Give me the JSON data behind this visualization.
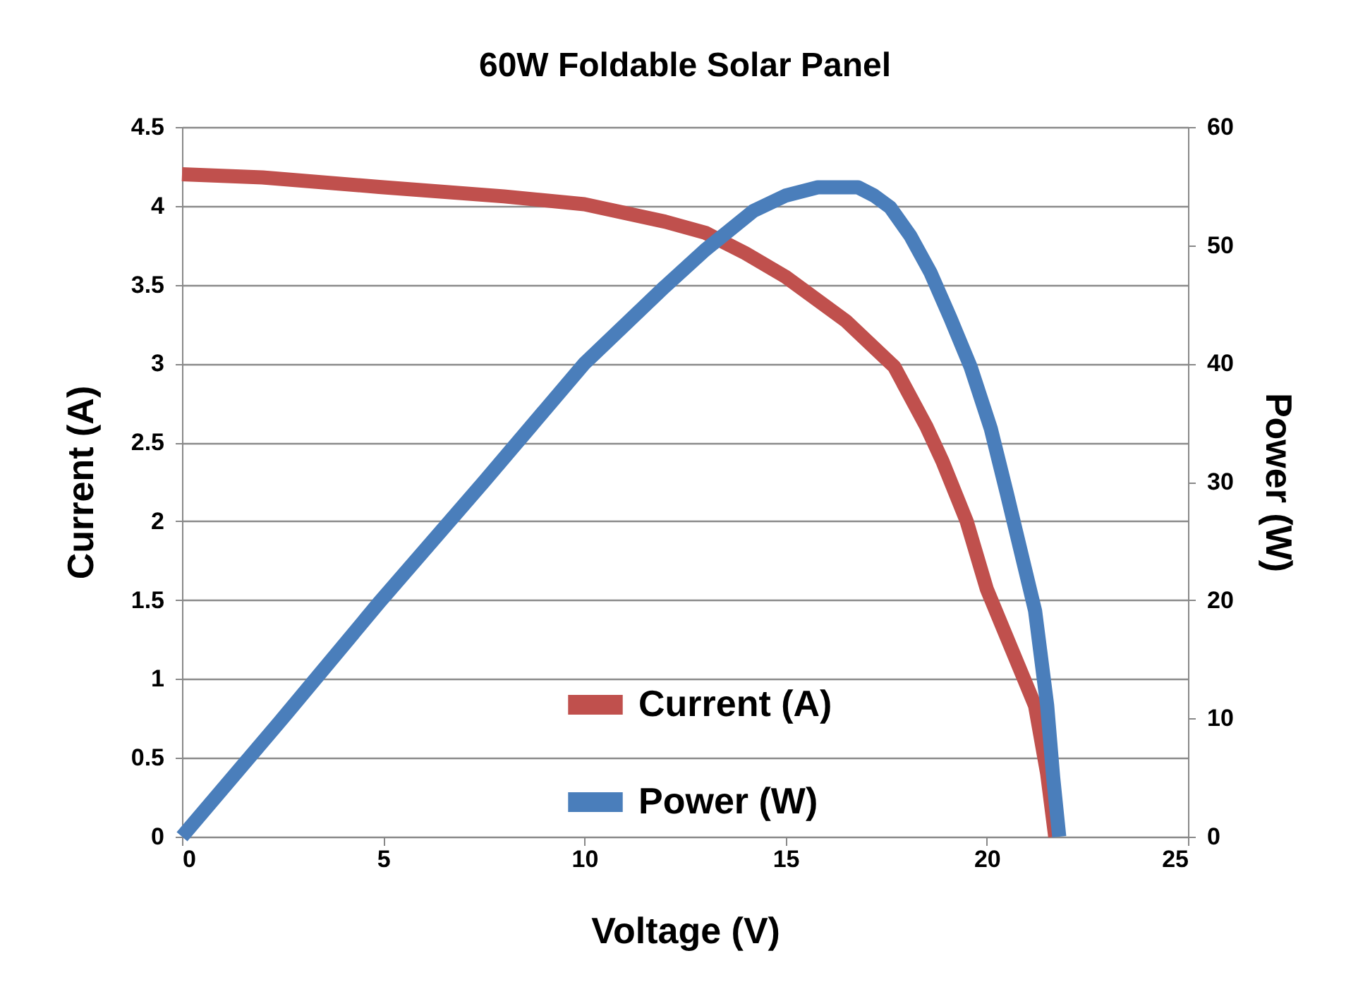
{
  "chart_data": {
    "type": "line",
    "title": "60W Foldable Solar Panel",
    "xlabel": "Voltage (V)",
    "ylabel": "Current (A)",
    "y2label": "Power (W)",
    "xlim": [
      0,
      25
    ],
    "xticks": [
      0,
      5,
      10,
      15,
      20,
      25
    ],
    "ylim": [
      0,
      4.5
    ],
    "yticks": [
      0,
      0.5,
      1,
      1.5,
      2,
      2.5,
      3,
      3.5,
      4,
      4.5
    ],
    "y2lim": [
      0,
      60
    ],
    "y2ticks": [
      0,
      10,
      20,
      30,
      40,
      50,
      60
    ],
    "grid": "y",
    "legend": "bottom",
    "line_style": "solid",
    "marker": "none",
    "series": [
      {
        "name": "Current (A)",
        "color": "#c0504d",
        "x": [
          0,
          2,
          4.9,
          8,
          10,
          12,
          13,
          14,
          15,
          16.5,
          17.7,
          18.5,
          18.9,
          19.5,
          20,
          20.6,
          21.2,
          21.5,
          21.7
        ],
        "values": [
          4.2,
          4.18,
          4.12,
          4.06,
          4.01,
          3.9,
          3.83,
          3.7,
          3.55,
          3.27,
          2.98,
          2.6,
          2.38,
          2.0,
          1.57,
          1.2,
          0.83,
          0.4,
          0
        ]
      },
      {
        "name": "Power (W)",
        "color": "#4a7ebb",
        "axis": "y2",
        "x": [
          0,
          2.5,
          4.9,
          7.5,
          10,
          12,
          13,
          14.2,
          15,
          15.8,
          16.8,
          17.2,
          17.6,
          18.1,
          18.6,
          19.1,
          19.6,
          20.1,
          20.5,
          21.2,
          21.5,
          21.65,
          21.8
        ],
        "values": [
          0,
          10,
          19.8,
          30,
          40,
          46.5,
          49.6,
          52.9,
          54.2,
          54.9,
          54.9,
          54.2,
          53.2,
          50.8,
          47.7,
          43.8,
          39.7,
          34.5,
          29,
          19.1,
          11.1,
          5,
          0
        ]
      }
    ]
  }
}
